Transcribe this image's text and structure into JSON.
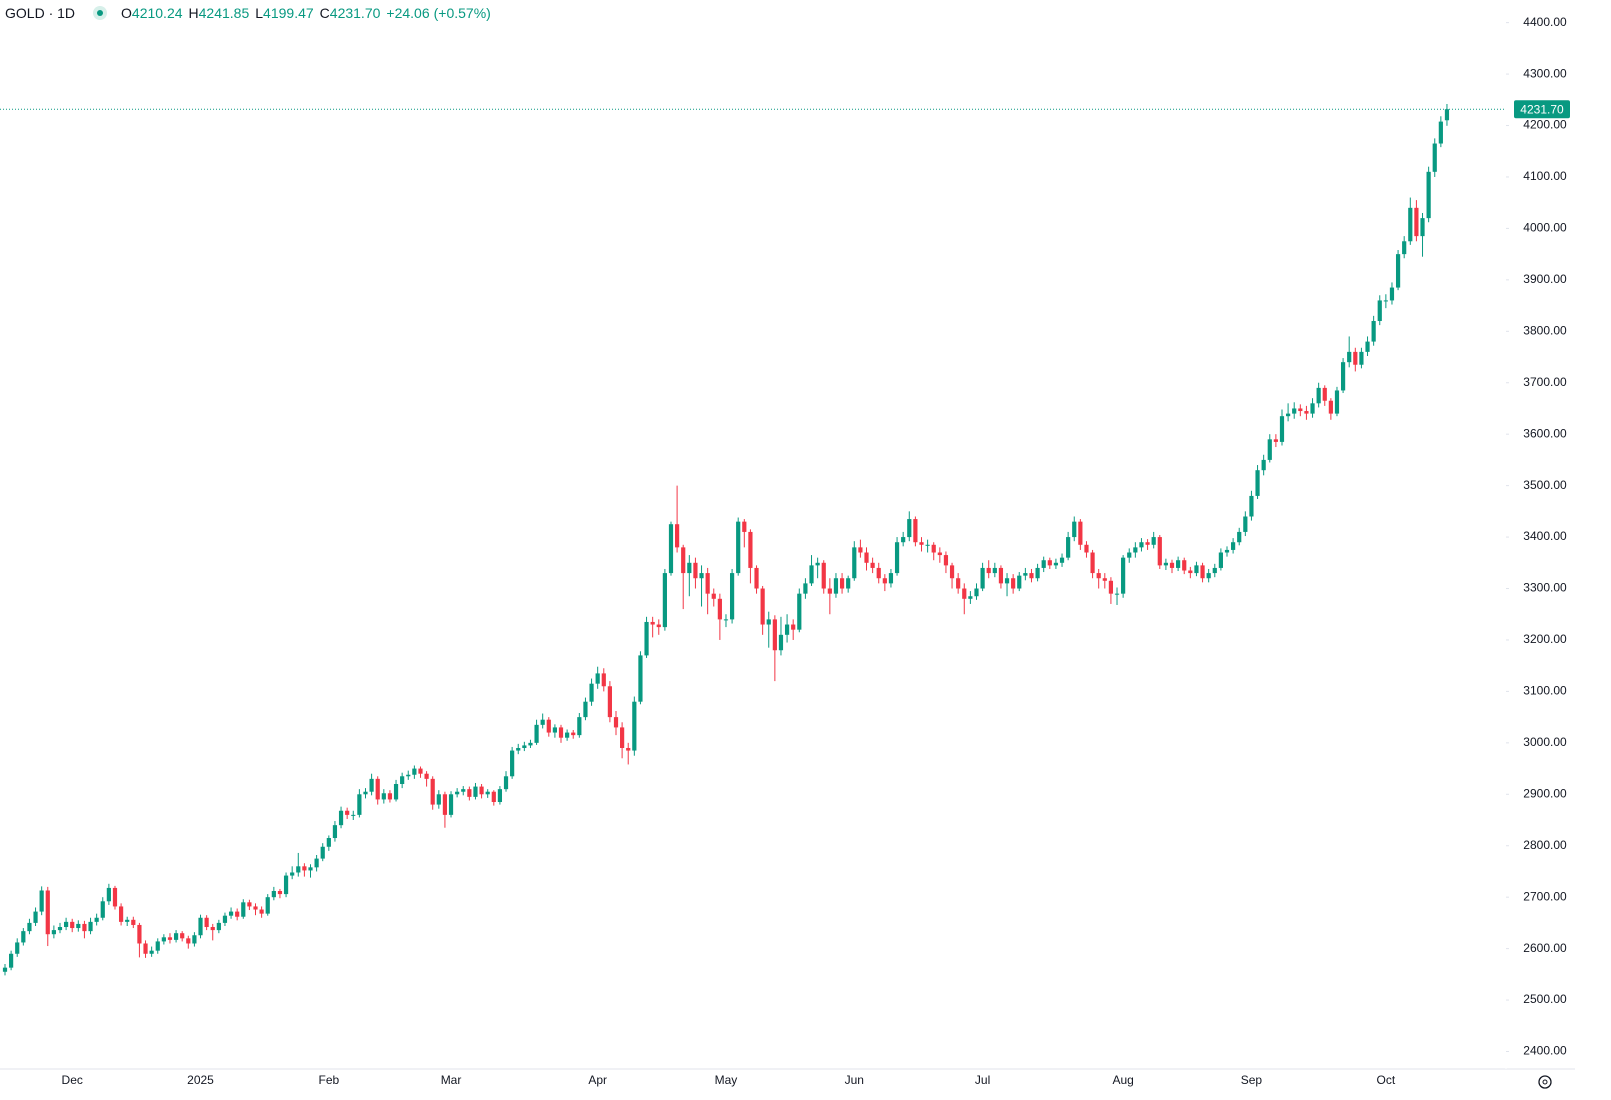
{
  "chart_data": {
    "type": "candlestick",
    "symbol": "GOLD · 1D",
    "ohlc_labels": [
      "O",
      "H",
      "L",
      "C"
    ],
    "change": "+24.06",
    "change_pct": "(+0.57%)",
    "up_color": "#089981",
    "down_color": "#f23645",
    "last_price": {
      "value": 4231.7,
      "label": "4231.70"
    },
    "ylim": [
      2366,
      4444
    ],
    "yticks": [
      {
        "value": 2400,
        "label": "2400.00"
      },
      {
        "value": 2500,
        "label": "2500.00"
      },
      {
        "value": 2600,
        "label": "2600.00"
      },
      {
        "value": 2700,
        "label": "2700.00"
      },
      {
        "value": 2800,
        "label": "2800.00"
      },
      {
        "value": 2900,
        "label": "2900.00"
      },
      {
        "value": 3000,
        "label": "3000.00"
      },
      {
        "value": 3100,
        "label": "3100.00"
      },
      {
        "value": 3200,
        "label": "3200.00"
      },
      {
        "value": 3300,
        "label": "3300.00"
      },
      {
        "value": 3400,
        "label": "3400.00"
      },
      {
        "value": 3500,
        "label": "3500.00"
      },
      {
        "value": 3600,
        "label": "3600.00"
      },
      {
        "value": 3700,
        "label": "3700.00"
      },
      {
        "value": 3800,
        "label": "3800.00"
      },
      {
        "value": 3900,
        "label": "3900.00"
      },
      {
        "value": 4000,
        "label": "4000.00"
      },
      {
        "value": 4100,
        "label": "4100.00"
      },
      {
        "value": 4200,
        "label": "4200.00"
      },
      {
        "value": 4300,
        "label": "4300.00"
      },
      {
        "value": 4400,
        "label": "4400.00"
      }
    ],
    "categories": [
      null,
      null,
      null,
      null,
      null,
      null,
      null,
      null,
      null,
      null,
      null,
      "Dec",
      null,
      null,
      null,
      null,
      null,
      null,
      null,
      null,
      null,
      null,
      null,
      null,
      null,
      null,
      null,
      null,
      null,
      null,
      null,
      null,
      "2025",
      null,
      null,
      null,
      null,
      null,
      null,
      null,
      null,
      null,
      null,
      null,
      null,
      null,
      null,
      null,
      null,
      null,
      null,
      null,
      null,
      "Feb",
      null,
      null,
      null,
      null,
      null,
      null,
      null,
      null,
      null,
      null,
      null,
      null,
      null,
      null,
      null,
      null,
      null,
      null,
      null,
      "Mar",
      null,
      null,
      null,
      null,
      null,
      null,
      null,
      null,
      null,
      null,
      null,
      null,
      null,
      null,
      null,
      null,
      null,
      null,
      null,
      null,
      null,
      null,
      null,
      "Apr",
      null,
      null,
      null,
      null,
      null,
      null,
      null,
      null,
      null,
      null,
      null,
      null,
      null,
      null,
      null,
      null,
      null,
      null,
      null,
      null,
      "May",
      null,
      null,
      null,
      null,
      null,
      null,
      null,
      null,
      null,
      null,
      null,
      null,
      null,
      null,
      null,
      null,
      null,
      null,
      null,
      null,
      "Jun",
      null,
      null,
      null,
      null,
      null,
      null,
      null,
      null,
      null,
      null,
      null,
      null,
      null,
      null,
      null,
      null,
      null,
      null,
      null,
      null,
      "Jul",
      null,
      null,
      null,
      null,
      null,
      null,
      null,
      null,
      null,
      null,
      null,
      null,
      null,
      null,
      null,
      null,
      null,
      null,
      null,
      null,
      null,
      null,
      "Aug",
      null,
      null,
      null,
      null,
      null,
      null,
      null,
      null,
      null,
      null,
      null,
      null,
      null,
      null,
      null,
      null,
      null,
      null,
      null,
      null,
      "Sep",
      null,
      null,
      null,
      null,
      null,
      null,
      null,
      null,
      null,
      null,
      null,
      null,
      null,
      null,
      null,
      null,
      null,
      null,
      null,
      null,
      null,
      "Oct",
      null,
      null,
      null,
      null,
      null,
      null,
      null,
      null,
      null,
      null
    ],
    "open": [
      2555,
      2563,
      2590,
      2612,
      2634,
      2650,
      2672,
      2713,
      2628,
      2636,
      2642,
      2652,
      2640,
      2648,
      2634,
      2652,
      2660,
      2692,
      2718,
      2682,
      2652,
      2656,
      2646,
      2610,
      2590,
      2596,
      2614,
      2622,
      2617,
      2630,
      2620,
      2610,
      2626,
      2660,
      2642,
      2636,
      2650,
      2664,
      2672,
      2662,
      2690,
      2682,
      2676,
      2668,
      2700,
      2712,
      2706,
      2742,
      2748,
      2760,
      2752,
      2758,
      2775,
      2798,
      2815,
      2840,
      2868,
      2860,
      2860,
      2900,
      2905,
      2930,
      2890,
      2902,
      2890,
      2920,
      2935,
      2938,
      2950,
      2940,
      2930,
      2880,
      2900,
      2860,
      2900,
      2905,
      2910,
      2895,
      2915,
      2900,
      2905,
      2885,
      2910,
      2935,
      2985,
      2990,
      2995,
      3000,
      3035,
      3045,
      3020,
      3030,
      3010,
      3020,
      3015,
      3050,
      3080,
      3115,
      3135,
      3110,
      3050,
      3030,
      2990,
      2985,
      3080,
      3170,
      3235,
      3230,
      3225,
      3330,
      3425,
      3380,
      3330,
      3350,
      3320,
      3330,
      3290,
      3280,
      3240,
      3240,
      3330,
      3430,
      3410,
      3340,
      3300,
      3230,
      3240,
      3180,
      3210,
      3230,
      3220,
      3290,
      3310,
      3345,
      3350,
      3300,
      3290,
      3320,
      3300,
      3320,
      3380,
      3370,
      3350,
      3340,
      3320,
      3310,
      3330,
      3390,
      3400,
      3435,
      3390,
      3385,
      3385,
      3370,
      3365,
      3345,
      3320,
      3300,
      3280,
      3285,
      3300,
      3340,
      3330,
      3340,
      3310,
      3320,
      3300,
      3325,
      3330,
      3320,
      3340,
      3355,
      3345,
      3350,
      3360,
      3400,
      3430,
      3385,
      3370,
      3330,
      3320,
      3315,
      3290,
      3290,
      3360,
      3370,
      3380,
      3390,
      3385,
      3400,
      3345,
      3350,
      3340,
      3355,
      3335,
      3330,
      3345,
      3320,
      3330,
      3340,
      3370,
      3375,
      3390,
      3410,
      3440,
      3480,
      3530,
      3550,
      3590,
      3585,
      3635,
      3640,
      3650,
      3645,
      3640,
      3660,
      3690,
      3665,
      3640,
      3685,
      3740,
      3760,
      3735,
      3760,
      3780,
      3820,
      3860,
      3860,
      3885,
      3950,
      3975,
      4040,
      3985,
      4020,
      4110,
      4165,
      4210.24
    ],
    "high": [
      2570,
      2596,
      2620,
      2640,
      2658,
      2680,
      2721,
      2720,
      2645,
      2650,
      2660,
      2658,
      2655,
      2654,
      2660,
      2668,
      2700,
      2726,
      2722,
      2688,
      2662,
      2662,
      2650,
      2616,
      2604,
      2620,
      2628,
      2630,
      2636,
      2634,
      2625,
      2632,
      2666,
      2665,
      2648,
      2656,
      2670,
      2680,
      2678,
      2696,
      2695,
      2688,
      2682,
      2706,
      2720,
      2716,
      2748,
      2760,
      2786,
      2766,
      2764,
      2782,
      2805,
      2820,
      2848,
      2876,
      2874,
      2868,
      2910,
      2912,
      2940,
      2935,
      2910,
      2908,
      2928,
      2942,
      2946,
      2956,
      2954,
      2945,
      2935,
      2908,
      2905,
      2906,
      2912,
      2916,
      2915,
      2922,
      2920,
      2910,
      2908,
      2916,
      2945,
      2992,
      2998,
      3002,
      3006,
      3045,
      3057,
      3050,
      3036,
      3035,
      3026,
      3025,
      3058,
      3088,
      3125,
      3148,
      3145,
      3120,
      3062,
      3040,
      3000,
      3090,
      3178,
      3245,
      3245,
      3240,
      3338,
      3430,
      3500,
      3385,
      3365,
      3360,
      3345,
      3340,
      3300,
      3290,
      3250,
      3338,
      3438,
      3435,
      3415,
      3345,
      3305,
      3255,
      3248,
      3245,
      3250,
      3240,
      3300,
      3320,
      3365,
      3360,
      3355,
      3320,
      3330,
      3330,
      3325,
      3392,
      3395,
      3380,
      3360,
      3350,
      3328,
      3338,
      3400,
      3410,
      3450,
      3440,
      3400,
      3395,
      3390,
      3380,
      3372,
      3350,
      3330,
      3310,
      3295,
      3310,
      3350,
      3355,
      3350,
      3345,
      3330,
      3328,
      3332,
      3340,
      3338,
      3348,
      3362,
      3360,
      3358,
      3368,
      3410,
      3440,
      3435,
      3392,
      3375,
      3338,
      3330,
      3322,
      3302,
      3365,
      3378,
      3390,
      3398,
      3396,
      3410,
      3404,
      3358,
      3356,
      3362,
      3360,
      3342,
      3352,
      3350,
      3338,
      3348,
      3378,
      3382,
      3398,
      3418,
      3450,
      3490,
      3540,
      3560,
      3600,
      3600,
      3648,
      3660,
      3662,
      3658,
      3655,
      3670,
      3700,
      3695,
      3670,
      3692,
      3748,
      3790,
      3768,
      3768,
      3790,
      3830,
      3870,
      3872,
      3895,
      3958,
      3985,
      4060,
      4055,
      4030,
      4120,
      4175,
      4218,
      4241.85
    ],
    "low": [
      2548,
      2558,
      2584,
      2606,
      2628,
      2644,
      2665,
      2605,
      2620,
      2630,
      2636,
      2632,
      2633,
      2620,
      2628,
      2645,
      2655,
      2685,
      2676,
      2645,
      2644,
      2640,
      2583,
      2582,
      2584,
      2590,
      2608,
      2610,
      2612,
      2614,
      2600,
      2604,
      2620,
      2636,
      2616,
      2630,
      2644,
      2658,
      2655,
      2658,
      2675,
      2665,
      2660,
      2664,
      2694,
      2698,
      2700,
      2735,
      2740,
      2740,
      2738,
      2750,
      2770,
      2790,
      2808,
      2834,
      2852,
      2850,
      2855,
      2892,
      2898,
      2880,
      2882,
      2884,
      2886,
      2912,
      2928,
      2930,
      2932,
      2915,
      2870,
      2872,
      2835,
      2855,
      2894,
      2898,
      2888,
      2890,
      2892,
      2893,
      2878,
      2880,
      2905,
      2930,
      2978,
      2984,
      2990,
      2996,
      3028,
      3012,
      3010,
      3000,
      3004,
      3008,
      3010,
      3044,
      3072,
      3105,
      3100,
      3040,
      3015,
      2970,
      2958,
      2975,
      3075,
      3165,
      3205,
      3210,
      3218,
      3325,
      3370,
      3260,
      3285,
      3300,
      3265,
      3250,
      3265,
      3200,
      3225,
      3232,
      3325,
      3380,
      3310,
      3290,
      3210,
      3185,
      3120,
      3170,
      3195,
      3200,
      3215,
      3280,
      3305,
      3320,
      3290,
      3250,
      3282,
      3290,
      3292,
      3315,
      3360,
      3335,
      3330,
      3310,
      3295,
      3302,
      3325,
      3382,
      3392,
      3382,
      3372,
      3370,
      3355,
      3350,
      3330,
      3300,
      3290,
      3250,
      3270,
      3278,
      3295,
      3320,
      3322,
      3300,
      3285,
      3290,
      3295,
      3316,
      3312,
      3314,
      3332,
      3338,
      3338,
      3342,
      3355,
      3392,
      3375,
      3360,
      3320,
      3300,
      3300,
      3270,
      3268,
      3282,
      3350,
      3360,
      3372,
      3375,
      3378,
      3338,
      3336,
      3330,
      3334,
      3328,
      3320,
      3324,
      3312,
      3312,
      3322,
      3335,
      3362,
      3368,
      3384,
      3402,
      3432,
      3474,
      3520,
      3545,
      3575,
      3578,
      3625,
      3630,
      3635,
      3628,
      3632,
      3652,
      3655,
      3628,
      3635,
      3680,
      3730,
      3722,
      3728,
      3752,
      3772,
      3812,
      3845,
      3852,
      3880,
      3942,
      3968,
      3975,
      3945,
      4012,
      4100,
      4158,
      4199.47
    ],
    "close": [
      2563,
      2590,
      2612,
      2634,
      2650,
      2672,
      2713,
      2628,
      2636,
      2642,
      2652,
      2640,
      2648,
      2634,
      2652,
      2660,
      2692,
      2718,
      2682,
      2652,
      2656,
      2646,
      2610,
      2590,
      2596,
      2614,
      2622,
      2617,
      2630,
      2620,
      2610,
      2626,
      2660,
      2642,
      2636,
      2650,
      2664,
      2672,
      2662,
      2690,
      2682,
      2676,
      2668,
      2700,
      2712,
      2706,
      2742,
      2748,
      2760,
      2752,
      2758,
      2775,
      2798,
      2815,
      2840,
      2868,
      2860,
      2860,
      2900,
      2905,
      2930,
      2890,
      2902,
      2890,
      2920,
      2935,
      2938,
      2950,
      2940,
      2930,
      2880,
      2900,
      2860,
      2900,
      2905,
      2910,
      2895,
      2915,
      2900,
      2905,
      2885,
      2910,
      2935,
      2985,
      2990,
      2995,
      3000,
      3035,
      3045,
      3020,
      3030,
      3010,
      3020,
      3015,
      3050,
      3080,
      3115,
      3135,
      3110,
      3050,
      3030,
      2990,
      2985,
      3080,
      3170,
      3235,
      3230,
      3225,
      3330,
      3425,
      3380,
      3330,
      3350,
      3320,
      3330,
      3290,
      3280,
      3240,
      3240,
      3330,
      3430,
      3410,
      3340,
      3300,
      3230,
      3240,
      3180,
      3210,
      3230,
      3220,
      3290,
      3310,
      3345,
      3350,
      3300,
      3290,
      3320,
      3300,
      3320,
      3380,
      3370,
      3350,
      3340,
      3320,
      3310,
      3330,
      3390,
      3400,
      3435,
      3390,
      3385,
      3385,
      3370,
      3365,
      3345,
      3320,
      3300,
      3280,
      3285,
      3300,
      3340,
      3330,
      3340,
      3310,
      3320,
      3300,
      3325,
      3330,
      3320,
      3340,
      3355,
      3345,
      3350,
      3360,
      3400,
      3430,
      3385,
      3370,
      3330,
      3320,
      3315,
      3290,
      3290,
      3360,
      3370,
      3380,
      3390,
      3385,
      3400,
      3345,
      3350,
      3340,
      3355,
      3335,
      3330,
      3345,
      3320,
      3330,
      3340,
      3370,
      3375,
      3390,
      3410,
      3440,
      3480,
      3530,
      3550,
      3590,
      3585,
      3635,
      3640,
      3650,
      3645,
      3640,
      3660,
      3690,
      3665,
      3640,
      3685,
      3740,
      3760,
      3735,
      3760,
      3780,
      3820,
      3860,
      3860,
      3885,
      3950,
      3975,
      4040,
      3985,
      4020,
      4110,
      4165,
      4207.64,
      4231.7
    ]
  }
}
